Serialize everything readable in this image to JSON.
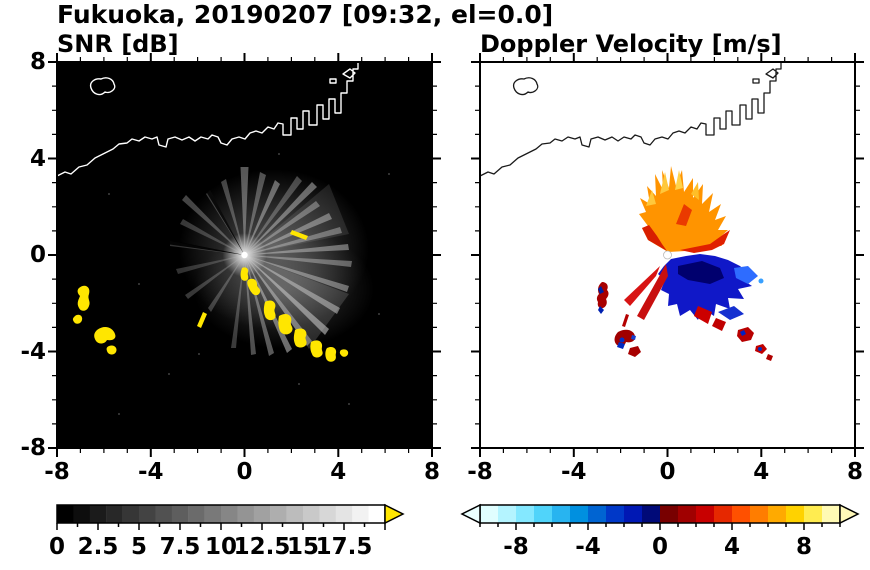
{
  "title": "Fukuoka, 20190207 [09:32, el=0.0]",
  "panels": {
    "snr": {
      "title": "SNR [dB]"
    },
    "doppler": {
      "title": "Doppler Velocity [m/s]"
    }
  },
  "axes": {
    "x_tick_labels": [
      "-8",
      "-4",
      "0",
      "4",
      "8"
    ],
    "y_tick_labels": [
      "8",
      "4",
      "0",
      "-4",
      "-8"
    ]
  },
  "colorbars": {
    "snr": {
      "tick_labels": [
        "0",
        "2.5",
        "5",
        "7.5",
        "10",
        "12.5",
        "15",
        "17.5"
      ],
      "value_range": [
        0,
        20
      ],
      "start_color": "#000000",
      "end_color": "#ffffff",
      "overflow_arrow_color": "#ffe600"
    },
    "doppler": {
      "tick_labels": [
        "-8",
        "-4",
        "0",
        "4",
        "8"
      ],
      "value_range": [
        -10,
        10
      ],
      "under_arrow_color": "#eaffff",
      "over_arrow_color": "#fff8b8",
      "colors": [
        "#e0feff",
        "#b4f4ff",
        "#84e8ff",
        "#50d4fa",
        "#28b4f0",
        "#0090e0",
        "#0064d2",
        "#0038c8",
        "#0018b4",
        "#000a78",
        "#780000",
        "#a00000",
        "#c80000",
        "#e62800",
        "#ff5000",
        "#ff7d00",
        "#ffaa00",
        "#ffd200",
        "#ffec50",
        "#fffab4"
      ]
    }
  },
  "colors": {
    "strong_echo": "#ffe600",
    "background_left": "#000000",
    "background_right": "#ffffff",
    "coastline_left": "#ffffff",
    "coastline_right": "#1a1a1a"
  },
  "chart_data": [
    {
      "type": "heatmap",
      "panel": "left",
      "title": "SNR [dB]",
      "x_range": [
        -8,
        8
      ],
      "y_range": [
        -8,
        8
      ],
      "x_ticks": [
        -8,
        -4,
        0,
        4,
        8
      ],
      "y_ticks": [
        -8,
        -4,
        0,
        4,
        8
      ],
      "colorbar": {
        "label_values": [
          0,
          2.5,
          5,
          7.5,
          10,
          12.5,
          15,
          17.5
        ],
        "value_range": [
          0,
          20
        ],
        "colormap": "black-to-white grayscale with yellow overflow arrow"
      },
      "features": [
        {
          "name": "radar-site",
          "x": 0,
          "y": 0,
          "note": "bright point at origin; gray radial beam streaks emanate outward, strongest toward NE through SE"
        },
        {
          "name": "coastline",
          "note": "white coastline across upper third, harbor piers near x 2..4 y 5..7, small island near (-6.5, 6.7)"
        },
        {
          "name": "strong-echo-cluster-west",
          "x": [
            -7.3,
            -5.3
          ],
          "y": [
            -1.2,
            -4.2
          ],
          "value": ">17.5 dB",
          "note": "yellow saturated echoes near left edge"
        },
        {
          "name": "strong-echo-arc-southeast",
          "x": [
            0,
            3.6
          ],
          "y": [
            -0.5,
            -4.3
          ],
          "value": ">17.5 dB",
          "note": "chain of yellow echoes curving from radar toward SE"
        },
        {
          "name": "small-echo",
          "x": -1.7,
          "y": -2.6,
          "value": ">17.5 dB"
        },
        {
          "name": "small-echo-ne",
          "x": 2.1,
          "y": 1.2,
          "value": ">17.5 dB"
        }
      ]
    },
    {
      "type": "heatmap",
      "panel": "right",
      "title": "Doppler Velocity [m/s]",
      "x_range": [
        -8,
        8
      ],
      "y_range": [
        -8,
        8
      ],
      "x_ticks": [
        -8,
        -4,
        0,
        4,
        8
      ],
      "y_ticks": [
        -8,
        -4,
        0,
        4,
        8
      ],
      "colorbar": {
        "label_values": [
          -8,
          -4,
          0,
          4,
          8
        ],
        "value_range": [
          -10,
          10
        ],
        "colormap": "diverging: pale cyan - blue - navy (negative) | dark red - red - orange - yellow (positive)"
      },
      "features": [
        {
          "name": "positive-velocity-fan",
          "note": "spiky orange/red/gold fan north of radar, approx +3 to +8 m/s"
        },
        {
          "name": "negative-velocity-lobe",
          "note": "solid blue/navy lobe south-southeast of radar, approx -2 to -6 m/s"
        },
        {
          "name": "positive-streaks-ssw",
          "note": "narrow red streaks extending SSW below radar"
        },
        {
          "name": "echo-cluster-west",
          "x": [
            -3.3,
            -1.4
          ],
          "y": [
            -1.0,
            -4.3
          ],
          "note": "small dark-red echoes with blue fragments"
        },
        {
          "name": "echo-bits-southeast",
          "x": [
            1.8,
            4.5
          ],
          "y": [
            -2.8,
            -4.5
          ],
          "note": "small red and blue echo fragments"
        }
      ]
    }
  ]
}
